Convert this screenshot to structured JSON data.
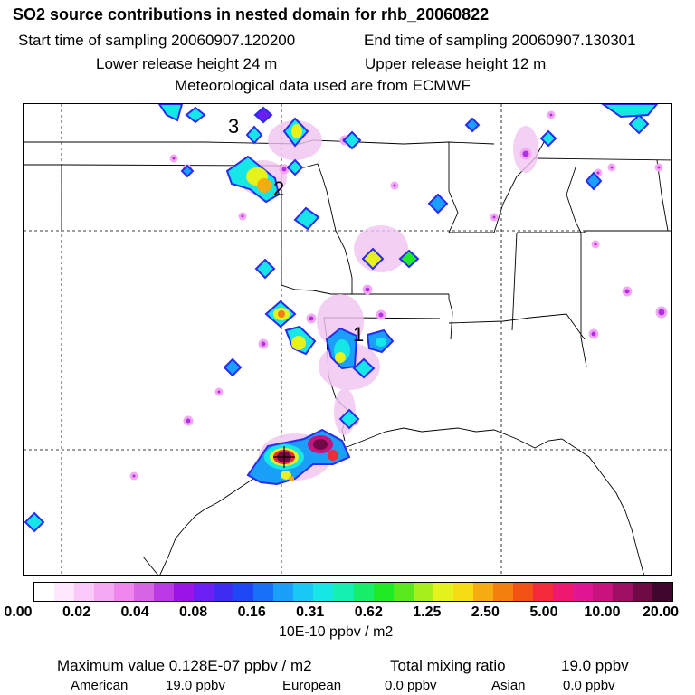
{
  "header": {
    "title": "SO2 source contributions in nested domain for rhb_20060822",
    "start_time": "Start time of sampling 20060907.120200",
    "end_time": "End time of sampling 20060907.130301",
    "lower_height": "Lower release height   24 m",
    "upper_height": "Upper release height   12 m",
    "met": "Meteorological data used are from ECMWF"
  },
  "map": {
    "source_labels": [
      "1",
      "2",
      "3"
    ]
  },
  "colorbar": {
    "colors": [
      "#ffffff",
      "#fde8fd",
      "#f9c9f9",
      "#f4a8f4",
      "#ee86ee",
      "#d763e6",
      "#bb3ae6",
      "#9a14e6",
      "#6c1ff2",
      "#3e2cf2",
      "#1d48f4",
      "#1870f6",
      "#1aa0f8",
      "#1ac8f6",
      "#16e6e6",
      "#14f0b0",
      "#16ee6a",
      "#1eea26",
      "#5ae81e",
      "#a6ee1c",
      "#e6f21c",
      "#f6dc14",
      "#f6ac10",
      "#f47e10",
      "#f45214",
      "#f42a3a",
      "#f0186e",
      "#e21694",
      "#c8127e",
      "#9e0e62",
      "#700a46",
      "#40062c"
    ],
    "ticks": [
      "0.00",
      "0.02",
      "0.04",
      "0.08",
      "0.16",
      "0.31",
      "0.62",
      "1.25",
      "2.50",
      "5.00",
      "10.00",
      "20.00"
    ],
    "units": "10E-10 ppbv / m2"
  },
  "stats": {
    "max_label": "Maximum value  0.128E-07 ppbv / m2",
    "total_label": "Total mixing ratio",
    "total_value": "19.0 ppbv",
    "american_label": "American",
    "american_value": "19.0 ppbv",
    "european_label": "European",
    "european_value": "0.0 ppbv",
    "asian_label": "Asian",
    "asian_value": "0.0 ppbv"
  }
}
